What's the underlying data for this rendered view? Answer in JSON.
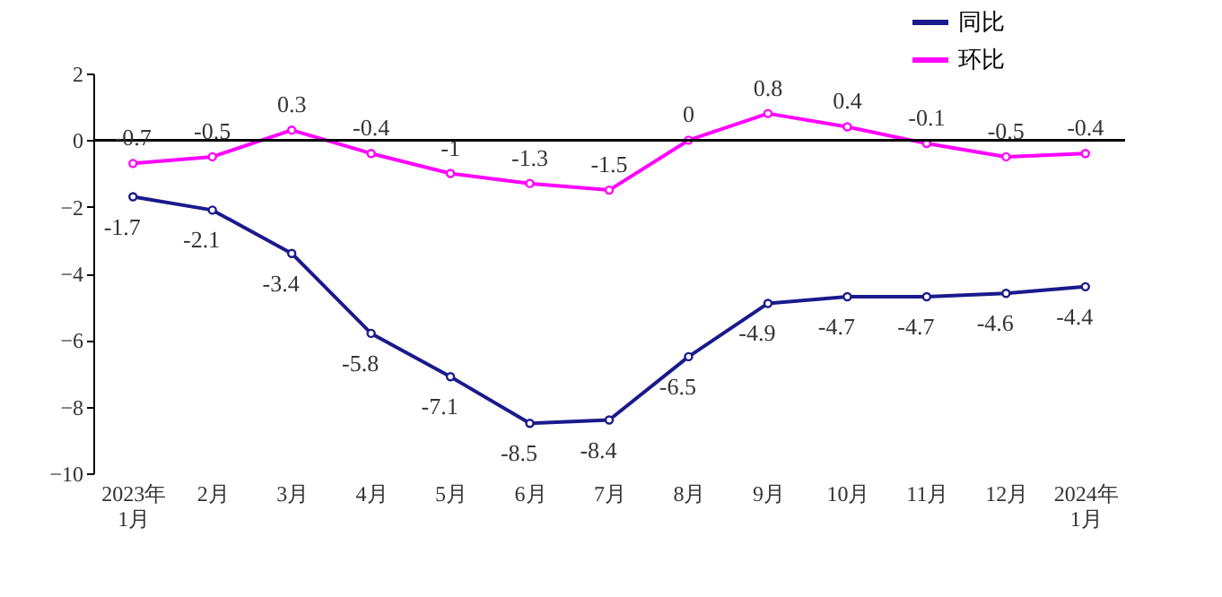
{
  "chart_data": {
    "type": "line",
    "categories": [
      "2023年\n1月",
      "2月",
      "3月",
      "4月",
      "5月",
      "6月",
      "7月",
      "8月",
      "9月",
      "10月",
      "11月",
      "12月",
      "2024年\n1月"
    ],
    "series": [
      {
        "name": "同比",
        "color": "#1a1a8c",
        "values": [
          -1.7,
          -2.1,
          -3.4,
          -5.8,
          -7.1,
          -8.5,
          -8.4,
          -6.5,
          -4.9,
          -4.7,
          -4.7,
          -4.6,
          -4.4
        ]
      },
      {
        "name": "环比",
        "color": "#ff00ff",
        "values": [
          -0.7,
          -0.5,
          0.3,
          -0.4,
          -1,
          -1.3,
          -1.5,
          0,
          0.8,
          0.4,
          -0.1,
          -0.5,
          -0.4
        ]
      }
    ],
    "ylim": [
      -10,
      2
    ],
    "yticks": [
      -10,
      -8,
      -6,
      -4,
      -2,
      0,
      2
    ],
    "ref_lines": [
      {
        "axis": "y",
        "value": 0,
        "color": "#000000"
      }
    ],
    "data_labels": true,
    "grid": false,
    "legend": "top right",
    "marker": "circle",
    "line_style": "solid"
  }
}
